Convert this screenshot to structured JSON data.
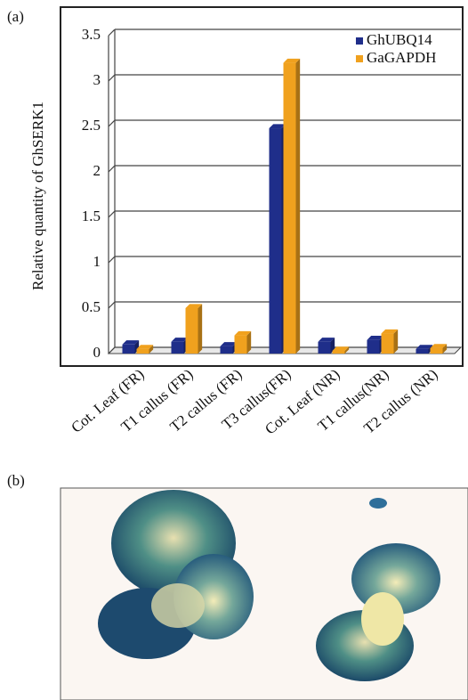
{
  "chart_data": {
    "type": "bar",
    "panel_label": "(a)",
    "ylabel": "Relative quantity of GhSERK1",
    "categories": [
      "Cot. Leaf (FR)",
      "T1 callus (FR)",
      "T2 callus (FR)",
      "T3 callus(FR)",
      "Cot. Leaf (NR)",
      "T1 callus(NR)",
      "T2 callus (NR)"
    ],
    "series": [
      {
        "name": "GhUBQ14",
        "color": "#1f2e8a",
        "values": [
          0.1,
          0.13,
          0.08,
          2.48,
          0.13,
          0.15,
          0.05
        ]
      },
      {
        "name": "GaGAPDH",
        "color": "#f0a11e",
        "values": [
          0.05,
          0.5,
          0.2,
          3.2,
          0.03,
          0.22,
          0.06
        ]
      }
    ],
    "ylim": [
      0,
      3.5
    ],
    "yticks": [
      0,
      0.5,
      1,
      1.5,
      2,
      2.5,
      3,
      3.5
    ],
    "grid": true,
    "legend": "upper right"
  },
  "image_panel": {
    "label": "(b)"
  }
}
